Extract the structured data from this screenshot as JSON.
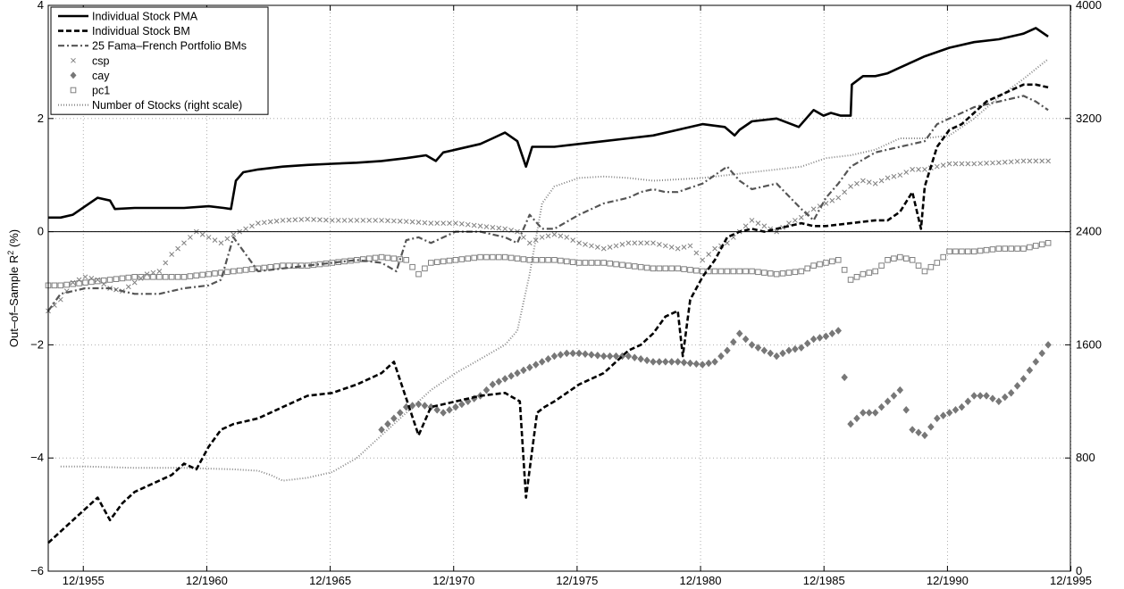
{
  "chart_data": {
    "type": "line",
    "title": "",
    "xlabel": "",
    "ylabel": "Out–of–Sample R",
    "ylabel_superscript": "2",
    "ylabel_suffix": " (%)",
    "xlim": [
      1954.5,
      1995.9
    ],
    "ylim": [
      -6,
      4
    ],
    "y2lim": [
      0,
      4000
    ],
    "grid": true,
    "legend_position": "top-left",
    "x_ticks": [
      1955.92,
      1960.92,
      1965.92,
      1970.92,
      1975.92,
      1980.92,
      1985.92,
      1990.92,
      1995.92
    ],
    "x_tick_labels": [
      "12/1955",
      "12/1960",
      "12/1965",
      "12/1970",
      "12/1975",
      "12/1980",
      "12/1985",
      "12/1990",
      "12/1995"
    ],
    "y_ticks": [
      -6,
      -4,
      -2,
      0,
      2,
      4
    ],
    "y_tick_labels": [
      "−6",
      "−4",
      "−2",
      "0",
      "2",
      "4"
    ],
    "y2_ticks": [
      0,
      800,
      1600,
      2400,
      3200,
      4000
    ],
    "y2_tick_labels": [
      "0",
      "800",
      "1600",
      "2400",
      "3200",
      "4000"
    ],
    "series": [
      {
        "name": "Individual Stock PMA",
        "style": "solid",
        "color": "#000000",
        "axis": "left",
        "x": [
          1954.5,
          1955.0,
          1955.5,
          1956.0,
          1956.5,
          1957.0,
          1957.2,
          1958.0,
          1959.0,
          1960.0,
          1961.0,
          1961.6,
          1961.9,
          1962.1,
          1962.4,
          1963.0,
          1964.0,
          1965.0,
          1966.0,
          1967.0,
          1968.0,
          1969.0,
          1969.8,
          1970.2,
          1970.5,
          1971.0,
          1972.0,
          1972.5,
          1973.0,
          1973.5,
          1973.85,
          1974.1,
          1974.5,
          1975.0,
          1976.0,
          1977.0,
          1978.0,
          1979.0,
          1980.0,
          1981.0,
          1981.9,
          1982.3,
          1982.5,
          1983.0,
          1984.0,
          1984.9,
          1985.2,
          1985.5,
          1985.9,
          1986.2,
          1986.6,
          1987.0,
          1987.05,
          1987.5,
          1988.0,
          1988.5,
          1989.0,
          1989.5,
          1990.0,
          1991.0,
          1992.0,
          1993.0,
          1994.0,
          1994.5,
          1995.0
        ],
        "y": [
          0.25,
          0.25,
          0.3,
          0.45,
          0.6,
          0.55,
          0.4,
          0.42,
          0.42,
          0.42,
          0.45,
          0.42,
          0.4,
          0.9,
          1.05,
          1.1,
          1.15,
          1.18,
          1.2,
          1.22,
          1.25,
          1.3,
          1.35,
          1.25,
          1.4,
          1.45,
          1.55,
          1.65,
          1.75,
          1.6,
          1.15,
          1.5,
          1.5,
          1.5,
          1.55,
          1.6,
          1.65,
          1.7,
          1.8,
          1.9,
          1.85,
          1.7,
          1.8,
          1.95,
          2.0,
          1.85,
          2.0,
          2.15,
          2.05,
          2.1,
          2.05,
          2.05,
          2.6,
          2.75,
          2.75,
          2.8,
          2.9,
          3.0,
          3.1,
          3.25,
          3.35,
          3.4,
          3.5,
          3.6,
          3.45
        ]
      },
      {
        "name": "Individual Stock BM",
        "style": "dashed",
        "color": "#000000",
        "axis": "left",
        "x": [
          1954.5,
          1955.0,
          1955.5,
          1956.0,
          1956.5,
          1957.0,
          1957.5,
          1958.0,
          1959.0,
          1959.5,
          1960.0,
          1960.5,
          1961.0,
          1961.5,
          1962.0,
          1963.0,
          1964.0,
          1965.0,
          1966.0,
          1967.0,
          1968.0,
          1968.5,
          1969.0,
          1969.5,
          1970.0,
          1970.5,
          1971.0,
          1972.0,
          1973.0,
          1973.6,
          1973.85,
          1974.0,
          1974.3,
          1974.6,
          1975.0,
          1976.0,
          1977.0,
          1978.0,
          1978.5,
          1979.0,
          1979.5,
          1980.0,
          1980.2,
          1980.5,
          1981.0,
          1981.5,
          1982.0,
          1982.5,
          1983.0,
          1983.5,
          1984.0,
          1984.5,
          1985.0,
          1985.5,
          1986.0,
          1987.0,
          1988.0,
          1988.5,
          1989.0,
          1989.5,
          1989.85,
          1990.0,
          1990.5,
          1991.0,
          1991.5,
          1992.0,
          1992.5,
          1993.0,
          1993.5,
          1994.0,
          1994.5,
          1995.0
        ],
        "y": [
          -5.5,
          -5.3,
          -5.1,
          -4.9,
          -4.7,
          -5.1,
          -4.8,
          -4.6,
          -4.4,
          -4.3,
          -4.1,
          -4.2,
          -3.8,
          -3.5,
          -3.4,
          -3.3,
          -3.1,
          -2.9,
          -2.85,
          -2.7,
          -2.5,
          -2.3,
          -2.95,
          -3.6,
          -3.1,
          -3.05,
          -3.0,
          -2.9,
          -2.85,
          -3.0,
          -4.7,
          -4.2,
          -3.2,
          -3.1,
          -3.0,
          -2.7,
          -2.5,
          -2.1,
          -2.0,
          -1.8,
          -1.5,
          -1.4,
          -2.2,
          -1.2,
          -0.8,
          -0.5,
          -0.1,
          0.0,
          0.05,
          0.0,
          0.05,
          0.1,
          0.15,
          0.1,
          0.1,
          0.15,
          0.2,
          0.2,
          0.35,
          0.7,
          0.05,
          0.8,
          1.5,
          1.8,
          1.9,
          2.1,
          2.3,
          2.4,
          2.5,
          2.6,
          2.6,
          2.55
        ]
      },
      {
        "name": "25 Fama–French Portfolio BMs",
        "style": "dashdot",
        "color": "#555555",
        "axis": "left",
        "x": [
          1954.5,
          1955.0,
          1956.0,
          1957.0,
          1958.0,
          1959.0,
          1960.0,
          1961.0,
          1961.5,
          1962.0,
          1963.0,
          1964.0,
          1965.0,
          1966.0,
          1967.0,
          1968.0,
          1968.6,
          1969.0,
          1969.5,
          1970.0,
          1971.0,
          1972.0,
          1973.0,
          1973.5,
          1974.0,
          1974.5,
          1975.0,
          1976.0,
          1977.0,
          1978.0,
          1978.5,
          1979.0,
          1979.5,
          1980.0,
          1981.0,
          1982.0,
          1982.5,
          1983.0,
          1984.0,
          1985.0,
          1985.5,
          1986.0,
          1986.5,
          1987.0,
          1988.0,
          1989.0,
          1990.0,
          1990.5,
          1991.0,
          1992.0,
          1993.0,
          1994.0,
          1994.5,
          1995.0
        ],
        "y": [
          -1.4,
          -1.1,
          -1.0,
          -1.0,
          -1.1,
          -1.1,
          -1.0,
          -0.95,
          -0.85,
          -0.1,
          -0.7,
          -0.65,
          -0.6,
          -0.55,
          -0.5,
          -0.55,
          -0.7,
          -0.15,
          -0.1,
          -0.2,
          0.0,
          0.0,
          -0.1,
          -0.2,
          0.3,
          0.05,
          0.05,
          0.3,
          0.5,
          0.6,
          0.7,
          0.75,
          0.7,
          0.7,
          0.85,
          1.15,
          0.9,
          0.75,
          0.85,
          0.4,
          0.2,
          0.6,
          0.85,
          1.15,
          1.4,
          1.5,
          1.6,
          1.9,
          2.0,
          2.2,
          2.3,
          2.4,
          2.3,
          2.15
        ]
      },
      {
        "name": "csp",
        "style": "marker-x",
        "color": "#808080",
        "axis": "left",
        "x": [
          1954.5,
          1955.0,
          1955.5,
          1956.0,
          1956.5,
          1957.0,
          1957.5,
          1958.0,
          1958.5,
          1959.0,
          1959.5,
          1960.0,
          1960.5,
          1961.0,
          1961.5,
          1962.0,
          1962.5,
          1963.0,
          1964.0,
          1965.0,
          1966.0,
          1967.0,
          1968.0,
          1969.0,
          1970.0,
          1971.0,
          1972.0,
          1973.0,
          1973.5,
          1974.0,
          1974.5,
          1975.0,
          1975.5,
          1976.0,
          1977.0,
          1978.0,
          1979.0,
          1980.0,
          1980.5,
          1981.0,
          1981.5,
          1982.0,
          1982.5,
          1983.0,
          1983.5,
          1984.0,
          1984.5,
          1985.0,
          1985.5,
          1986.0,
          1986.5,
          1987.0,
          1987.5,
          1988.0,
          1988.5,
          1989.0,
          1989.5,
          1990.0,
          1990.5,
          1991.0,
          1992.0,
          1993.0,
          1994.0,
          1995.0
        ],
        "y": [
          -1.4,
          -1.2,
          -0.9,
          -0.8,
          -0.85,
          -1.0,
          -1.05,
          -0.9,
          -0.75,
          -0.7,
          -0.4,
          -0.2,
          0.0,
          -0.1,
          -0.2,
          -0.05,
          0.05,
          0.15,
          0.2,
          0.22,
          0.2,
          0.2,
          0.2,
          0.18,
          0.15,
          0.15,
          0.1,
          0.05,
          0.0,
          -0.2,
          -0.1,
          -0.05,
          -0.1,
          -0.2,
          -0.3,
          -0.2,
          -0.2,
          -0.3,
          -0.25,
          -0.5,
          -0.3,
          -0.2,
          0.0,
          0.2,
          0.1,
          0.0,
          0.15,
          0.25,
          0.4,
          0.5,
          0.6,
          0.8,
          0.9,
          0.85,
          0.95,
          1.0,
          1.1,
          1.1,
          1.15,
          1.2,
          1.2,
          1.22,
          1.25,
          1.25
        ]
      },
      {
        "name": "cay",
        "style": "marker-diamond",
        "color": "#777777",
        "axis": "left",
        "x": [
          1968.0,
          1968.5,
          1969.0,
          1969.5,
          1970.0,
          1970.5,
          1971.0,
          1971.5,
          1972.0,
          1972.5,
          1973.0,
          1973.5,
          1974.0,
          1974.5,
          1975.0,
          1975.5,
          1976.0,
          1977.0,
          1978.0,
          1979.0,
          1980.0,
          1981.0,
          1981.5,
          1982.0,
          1982.5,
          1983.0,
          1983.5,
          1984.0,
          1984.5,
          1985.0,
          1985.5,
          1986.0,
          1986.5,
          1987.0,
          1987.5,
          1988.0,
          1988.5,
          1989.0,
          1989.5,
          1990.0,
          1990.5,
          1991.0,
          1991.5,
          1992.0,
          1992.5,
          1993.0,
          1993.5,
          1994.0,
          1994.5,
          1995.0
        ],
        "y": [
          -3.5,
          -3.3,
          -3.1,
          -3.05,
          -3.1,
          -3.2,
          -3.1,
          -3.0,
          -2.9,
          -2.7,
          -2.6,
          -2.5,
          -2.4,
          -2.3,
          -2.2,
          -2.15,
          -2.15,
          -2.2,
          -2.2,
          -2.3,
          -2.3,
          -2.35,
          -2.3,
          -2.1,
          -1.8,
          -2.0,
          -2.1,
          -2.2,
          -2.1,
          -2.05,
          -1.9,
          -1.85,
          -1.75,
          -3.4,
          -3.2,
          -3.2,
          -3.0,
          -2.8,
          -3.5,
          -3.6,
          -3.3,
          -3.2,
          -3.1,
          -2.9,
          -2.9,
          -3.0,
          -2.85,
          -2.6,
          -2.3,
          -2.0
        ]
      },
      {
        "name": "pc1",
        "style": "marker-square",
        "color": "#808080",
        "axis": "left",
        "x": [
          1954.5,
          1955.0,
          1956.0,
          1957.0,
          1958.0,
          1959.0,
          1960.0,
          1961.0,
          1962.0,
          1963.0,
          1964.0,
          1965.0,
          1966.0,
          1967.0,
          1968.0,
          1969.0,
          1969.5,
          1970.0,
          1971.0,
          1972.0,
          1973.0,
          1974.0,
          1975.0,
          1976.0,
          1977.0,
          1978.0,
          1979.0,
          1980.0,
          1981.0,
          1982.0,
          1983.0,
          1984.0,
          1985.0,
          1985.5,
          1986.0,
          1986.5,
          1987.0,
          1987.5,
          1988.0,
          1988.5,
          1989.0,
          1989.5,
          1990.0,
          1990.5,
          1991.0,
          1992.0,
          1993.0,
          1994.0,
          1995.0
        ],
        "y": [
          -0.95,
          -0.95,
          -0.9,
          -0.85,
          -0.8,
          -0.8,
          -0.8,
          -0.75,
          -0.7,
          -0.65,
          -0.6,
          -0.6,
          -0.55,
          -0.5,
          -0.45,
          -0.5,
          -0.75,
          -0.55,
          -0.5,
          -0.45,
          -0.45,
          -0.5,
          -0.5,
          -0.55,
          -0.55,
          -0.6,
          -0.65,
          -0.65,
          -0.7,
          -0.7,
          -0.7,
          -0.75,
          -0.7,
          -0.6,
          -0.55,
          -0.5,
          -0.85,
          -0.75,
          -0.7,
          -0.5,
          -0.45,
          -0.5,
          -0.7,
          -0.55,
          -0.35,
          -0.35,
          -0.3,
          -0.3,
          -0.2
        ]
      },
      {
        "name": "Number of Stocks (right scale)",
        "style": "dotted",
        "color": "#888888",
        "axis": "right",
        "x": [
          1955.0,
          1956.0,
          1958.0,
          1960.0,
          1962.0,
          1963.0,
          1963.5,
          1964.0,
          1965.0,
          1966.0,
          1967.0,
          1968.0,
          1969.0,
          1970.0,
          1971.0,
          1972.0,
          1973.0,
          1973.5,
          1974.0,
          1974.5,
          1975.0,
          1976.0,
          1977.0,
          1978.0,
          1979.0,
          1980.0,
          1981.0,
          1982.0,
          1983.0,
          1984.0,
          1985.0,
          1986.0,
          1987.0,
          1988.0,
          1989.0,
          1990.0,
          1991.0,
          1992.0,
          1993.0,
          1994.0,
          1995.0
        ],
        "y": [
          740,
          740,
          730,
          730,
          720,
          710,
          680,
          640,
          660,
          700,
          800,
          960,
          1120,
          1280,
          1400,
          1500,
          1600,
          1700,
          2100,
          2600,
          2720,
          2780,
          2790,
          2780,
          2760,
          2770,
          2780,
          2800,
          2820,
          2840,
          2860,
          2920,
          2940,
          2980,
          3060,
          3060,
          3080,
          3200,
          3350,
          3480,
          3620
        ]
      }
    ]
  }
}
